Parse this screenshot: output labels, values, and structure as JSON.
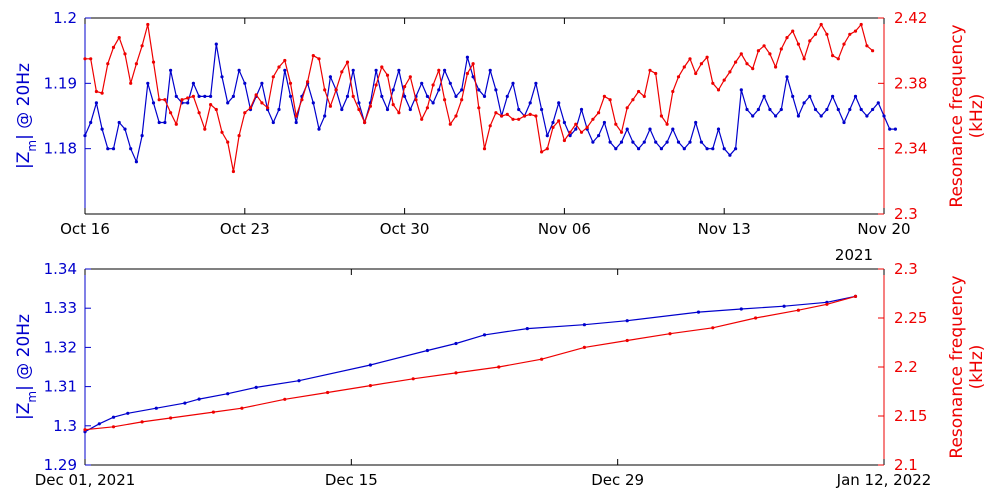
{
  "colors": {
    "left": "#0000cc",
    "right": "#ee0000",
    "axis": "#000000"
  },
  "chart_data": [
    {
      "type": "line",
      "x_ticks": [
        "Oct 16",
        "Oct 23",
        "Oct 30",
        "Nov 06",
        "Nov 13",
        "Nov 20"
      ],
      "x_year_label": "2021",
      "xlim": [
        0,
        35
      ],
      "ylabel_left": {
        "main": "|Z",
        "sub": "m",
        "rest": "| @ 20Hz"
      },
      "ylabel_right": [
        "Resonance frequency",
        "(kHz)"
      ],
      "ylim_left": [
        1.17,
        1.2
      ],
      "yticks_left": [
        "1.18",
        "1.19",
        "1.2"
      ],
      "ylim_right": [
        2.3,
        2.42
      ],
      "yticks_right": [
        "2.3",
        "2.34",
        "2.38",
        "2.42"
      ],
      "series": [
        {
          "axis": "left",
          "x_step": 0.25,
          "y": [
            1.182,
            1.184,
            1.187,
            1.183,
            1.18,
            1.18,
            1.184,
            1.183,
            1.18,
            1.178,
            1.182,
            1.19,
            1.187,
            1.184,
            1.184,
            1.192,
            1.188,
            1.187,
            1.187,
            1.19,
            1.188,
            1.188,
            1.188,
            1.196,
            1.191,
            1.187,
            1.188,
            1.192,
            1.19,
            1.186,
            1.188,
            1.19,
            1.186,
            1.184,
            1.186,
            1.192,
            1.188,
            1.184,
            1.188,
            1.19,
            1.187,
            1.183,
            1.185,
            1.191,
            1.189,
            1.186,
            1.188,
            1.192,
            1.187,
            1.184,
            1.187,
            1.192,
            1.188,
            1.186,
            1.189,
            1.192,
            1.188,
            1.186,
            1.188,
            1.19,
            1.188,
            1.187,
            1.189,
            1.192,
            1.19,
            1.188,
            1.189,
            1.194,
            1.191,
            1.189,
            1.188,
            1.192,
            1.189,
            1.185,
            1.188,
            1.19,
            1.186,
            1.185,
            1.187,
            1.19,
            1.186,
            1.182,
            1.184,
            1.187,
            1.184,
            1.182,
            1.183,
            1.186,
            1.183,
            1.181,
            1.182,
            1.184,
            1.181,
            1.18,
            1.181,
            1.183,
            1.181,
            1.18,
            1.181,
            1.183,
            1.181,
            1.18,
            1.181,
            1.183,
            1.181,
            1.18,
            1.181,
            1.184,
            1.181,
            1.18,
            1.18,
            1.183,
            1.18,
            1.179,
            1.18,
            1.189,
            1.186,
            1.185,
            1.186,
            1.188,
            1.186,
            1.185,
            1.186,
            1.191,
            1.188,
            1.185,
            1.187,
            1.188,
            1.186,
            1.185,
            1.186,
            1.188,
            1.186,
            1.184,
            1.186,
            1.188,
            1.186,
            1.185,
            1.186,
            1.187,
            1.185,
            1.183,
            1.183
          ]
        },
        {
          "axis": "right",
          "x_step": 0.25,
          "y": [
            2.395,
            2.395,
            2.375,
            2.374,
            2.392,
            2.402,
            2.408,
            2.398,
            2.38,
            2.392,
            2.403,
            2.416,
            2.393,
            2.37,
            2.37,
            2.362,
            2.355,
            2.37,
            2.371,
            2.372,
            2.362,
            2.352,
            2.367,
            2.364,
            2.35,
            2.344,
            2.326,
            2.348,
            2.362,
            2.365,
            2.373,
            2.368,
            2.365,
            2.384,
            2.39,
            2.394,
            2.38,
            2.36,
            2.37,
            2.381,
            2.397,
            2.395,
            2.376,
            2.366,
            2.376,
            2.387,
            2.393,
            2.372,
            2.364,
            2.356,
            2.366,
            2.379,
            2.39,
            2.385,
            2.367,
            2.362,
            2.378,
            2.384,
            2.37,
            2.358,
            2.365,
            2.379,
            2.388,
            2.37,
            2.355,
            2.36,
            2.37,
            2.386,
            2.392,
            2.365,
            2.34,
            2.354,
            2.362,
            2.36,
            2.361,
            2.358,
            2.358,
            2.36,
            2.361,
            2.36,
            2.338,
            2.34,
            2.353,
            2.357,
            2.345,
            2.35,
            2.355,
            2.35,
            2.353,
            2.358,
            2.362,
            2.372,
            2.37,
            2.355,
            2.35,
            2.365,
            2.37,
            2.375,
            2.372,
            2.388,
            2.386,
            2.36,
            2.355,
            2.375,
            2.384,
            2.39,
            2.395,
            2.386,
            2.392,
            2.396,
            2.38,
            2.376,
            2.382,
            2.387,
            2.393,
            2.398,
            2.392,
            2.389,
            2.4,
            2.403,
            2.398,
            2.39,
            2.401,
            2.408,
            2.412,
            2.404,
            2.395,
            2.406,
            2.41,
            2.416,
            2.41,
            2.397,
            2.395,
            2.404,
            2.41,
            2.412,
            2.416,
            2.403,
            2.4
          ]
        }
      ]
    },
    {
      "type": "line",
      "x_ticks": [
        "Dec 01, 2021",
        "Dec 15",
        "Dec 29",
        "Jan 12, 2022"
      ],
      "xlim": [
        0,
        56
      ],
      "ylabel_left": {
        "main": "|Z",
        "sub": "m",
        "rest": "| @ 20Hz"
      },
      "ylabel_right": [
        "Resonance frequency",
        "(kHz)"
      ],
      "ylim_left": [
        1.29,
        1.34
      ],
      "yticks_left": [
        "1.29",
        "1.3",
        "1.31",
        "1.32",
        "1.33",
        "1.34"
      ],
      "ylim_right": [
        2.1,
        2.3
      ],
      "yticks_right": [
        "2.1",
        "2.15",
        "2.2",
        "2.25",
        "2.3"
      ],
      "series": [
        {
          "axis": "left",
          "x": [
            0,
            1,
            2,
            3,
            5,
            7,
            8,
            10,
            12,
            15,
            20,
            24,
            26,
            28,
            31,
            35,
            38,
            43,
            46,
            49,
            52,
            54
          ],
          "y": [
            1.2985,
            1.3005,
            1.3022,
            1.3032,
            1.3045,
            1.3058,
            1.3068,
            1.3082,
            1.3098,
            1.3115,
            1.3155,
            1.3192,
            1.321,
            1.3232,
            1.3248,
            1.3258,
            1.3268,
            1.329,
            1.3298,
            1.3305,
            1.3315,
            1.333
          ]
        },
        {
          "axis": "right",
          "x": [
            0,
            2,
            4,
            6,
            9,
            11,
            14,
            17,
            20,
            23,
            26,
            29,
            32,
            35,
            38,
            41,
            44,
            47,
            50,
            52,
            54
          ],
          "y": [
            2.136,
            2.139,
            2.144,
            2.148,
            2.154,
            2.158,
            2.167,
            2.174,
            2.181,
            2.188,
            2.194,
            2.2,
            2.208,
            2.22,
            2.227,
            2.234,
            2.24,
            2.25,
            2.258,
            2.264,
            2.272
          ]
        }
      ]
    }
  ]
}
